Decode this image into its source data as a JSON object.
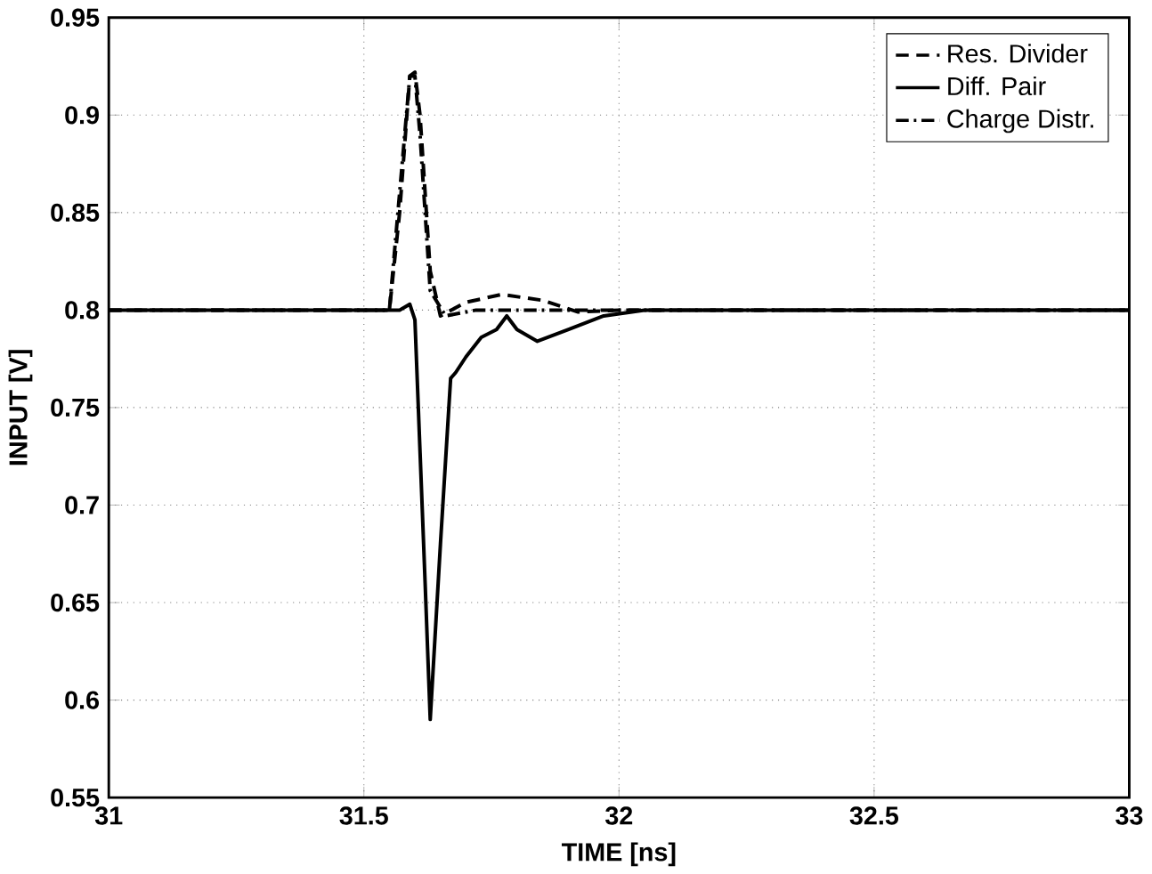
{
  "chart_data": {
    "type": "line",
    "xlabel": "TIME [ns]",
    "ylabel": "INPUT [V]",
    "xlim": [
      31,
      33
    ],
    "ylim": [
      0.55,
      0.95
    ],
    "xticks": [
      31,
      31.5,
      32,
      32.5,
      33
    ],
    "yticks": [
      0.55,
      0.6,
      0.65,
      0.7,
      0.75,
      0.8,
      0.85,
      0.9,
      0.95
    ],
    "grid": true,
    "legend": "top right",
    "series": [
      {
        "name": "Res. Divider",
        "color": "#000000",
        "line_style": "dashed",
        "x": [
          31,
          31.55,
          31.57,
          31.59,
          31.6,
          31.61,
          31.63,
          31.65,
          31.7,
          31.77,
          31.85,
          31.92,
          32,
          32.5,
          33
        ],
        "values": [
          0.8,
          0.8,
          0.85,
          0.92,
          0.922,
          0.9,
          0.82,
          0.797,
          0.804,
          0.808,
          0.805,
          0.799,
          0.8,
          0.8,
          0.8
        ]
      },
      {
        "name": "Diff. Pair",
        "color": "#000000",
        "line_style": "solid",
        "x": [
          31,
          31.57,
          31.59,
          31.6,
          31.62,
          31.63,
          31.65,
          31.67,
          31.68,
          31.7,
          31.73,
          31.76,
          31.78,
          31.8,
          31.84,
          31.9,
          31.97,
          32.05,
          32.5,
          33
        ],
        "values": [
          0.8,
          0.8,
          0.803,
          0.795,
          0.66,
          0.59,
          0.68,
          0.765,
          0.768,
          0.776,
          0.786,
          0.79,
          0.797,
          0.79,
          0.784,
          0.79,
          0.797,
          0.8,
          0.8,
          0.8
        ]
      },
      {
        "name": "Charge Distr.",
        "color": "#000000",
        "line_style": "dashdot",
        "x": [
          31,
          31.55,
          31.57,
          31.59,
          31.6,
          31.61,
          31.63,
          31.66,
          31.72,
          31.85,
          32,
          32.5,
          33
        ],
        "values": [
          0.8,
          0.8,
          0.86,
          0.92,
          0.92,
          0.89,
          0.81,
          0.797,
          0.8,
          0.8,
          0.8,
          0.8,
          0.8
        ]
      }
    ]
  }
}
